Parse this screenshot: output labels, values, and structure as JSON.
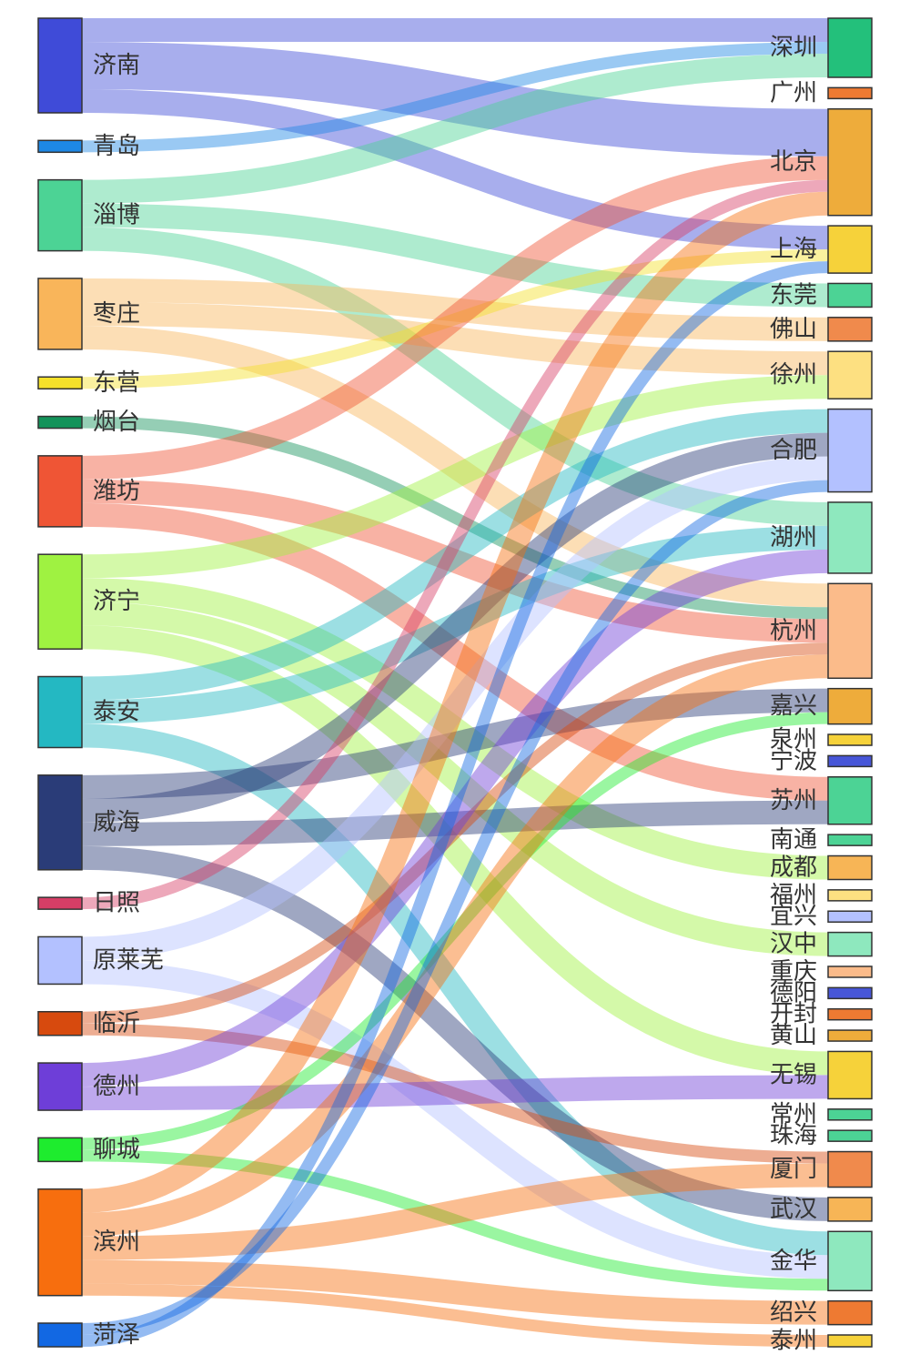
{
  "chart_data": {
    "type": "sankey",
    "sources": [
      {
        "name": "济南",
        "color": "#3f4bd8"
      },
      {
        "name": "青岛",
        "color": "#1e88e5"
      },
      {
        "name": "淄博",
        "color": "#4cd395"
      },
      {
        "name": "枣庄",
        "color": "#f9b55a"
      },
      {
        "name": "东营",
        "color": "#f5e12a"
      },
      {
        "name": "烟台",
        "color": "#13935a"
      },
      {
        "name": "潍坊",
        "color": "#ef5535"
      },
      {
        "name": "济宁",
        "color": "#9ff241"
      },
      {
        "name": "泰安",
        "color": "#24b8c2"
      },
      {
        "name": "威海",
        "color": "#2a3c78"
      },
      {
        "name": "日照",
        "color": "#d63e66"
      },
      {
        "name": "原莱芜",
        "color": "#b3c1ff"
      },
      {
        "name": "临沂",
        "color": "#d74a0e"
      },
      {
        "name": "德州",
        "color": "#6e3ed8"
      },
      {
        "name": "聊城",
        "color": "#1eec2e"
      },
      {
        "name": "滨州",
        "color": "#f76e0e"
      },
      {
        "name": "菏泽",
        "color": "#1268e3"
      }
    ],
    "targets": [
      {
        "name": "深圳",
        "color": "#23c07b"
      },
      {
        "name": "广州",
        "color": "#ee7a32"
      },
      {
        "name": "北京",
        "color": "#eeac3b"
      },
      {
        "name": "上海",
        "color": "#f6d23a"
      },
      {
        "name": "东莞",
        "color": "#4cd395"
      },
      {
        "name": "佛山",
        "color": "#f08a4c"
      },
      {
        "name": "徐州",
        "color": "#fde081"
      },
      {
        "name": "合肥",
        "color": "#b3c1ff"
      },
      {
        "name": "湖州",
        "color": "#8ee8be"
      },
      {
        "name": "杭州",
        "color": "#fbbb8a"
      },
      {
        "name": "嘉兴",
        "color": "#eeac3b"
      },
      {
        "name": "泉州",
        "color": "#f6d23a"
      },
      {
        "name": "宁波",
        "color": "#4756d8"
      },
      {
        "name": "苏州",
        "color": "#4cd395"
      },
      {
        "name": "南通",
        "color": "#4cd395"
      },
      {
        "name": "成都",
        "color": "#f7b556"
      },
      {
        "name": "福州",
        "color": "#fde081"
      },
      {
        "name": "宜兴",
        "color": "#b3c1ff"
      },
      {
        "name": "汉中",
        "color": "#8ee8be"
      },
      {
        "name": "重庆",
        "color": "#fbbb8a"
      },
      {
        "name": "德阳",
        "color": "#4756d8"
      },
      {
        "name": "开封",
        "color": "#ee7a32"
      },
      {
        "name": "黄山",
        "color": "#eeac3b"
      },
      {
        "name": "无锡",
        "color": "#f6d23a"
      },
      {
        "name": "常州",
        "color": "#4cd395"
      },
      {
        "name": "珠海",
        "color": "#4cd395"
      },
      {
        "name": "厦门",
        "color": "#f08a4c"
      },
      {
        "name": "武汉",
        "color": "#f7b556"
      },
      {
        "name": "金华",
        "color": "#8ee8be"
      },
      {
        "name": "绍兴",
        "color": "#ee7a32"
      },
      {
        "name": "泰州",
        "color": "#f6d23a"
      }
    ],
    "links": [
      {
        "source": "济南",
        "target": "深圳",
        "value": 1
      },
      {
        "source": "济南",
        "target": "北京",
        "value": 2
      },
      {
        "source": "济南",
        "target": "上海",
        "value": 1
      },
      {
        "source": "青岛",
        "target": "深圳",
        "value": 0.5
      },
      {
        "source": "淄博",
        "target": "深圳",
        "value": 1
      },
      {
        "source": "淄博",
        "target": "东莞",
        "value": 1
      },
      {
        "source": "淄博",
        "target": "湖州",
        "value": 1
      },
      {
        "source": "枣庄",
        "target": "佛山",
        "value": 1
      },
      {
        "source": "枣庄",
        "target": "徐州",
        "value": 1
      },
      {
        "source": "枣庄",
        "target": "杭州",
        "value": 1
      },
      {
        "source": "东营",
        "target": "上海",
        "value": 0.5
      },
      {
        "source": "烟台",
        "target": "杭州",
        "value": 0.5
      },
      {
        "source": "潍坊",
        "target": "北京",
        "value": 1
      },
      {
        "source": "潍坊",
        "target": "杭州",
        "value": 1
      },
      {
        "source": "潍坊",
        "target": "苏州",
        "value": 1
      },
      {
        "source": "济宁",
        "target": "徐州",
        "value": 1
      },
      {
        "source": "济宁",
        "target": "成都",
        "value": 1
      },
      {
        "source": "济宁",
        "target": "汉中",
        "value": 1
      },
      {
        "source": "济宁",
        "target": "无锡",
        "value": 1
      },
      {
        "source": "泰安",
        "target": "合肥",
        "value": 1
      },
      {
        "source": "泰安",
        "target": "湖州",
        "value": 1
      },
      {
        "source": "泰安",
        "target": "金华",
        "value": 1
      },
      {
        "source": "威海",
        "target": "嘉兴",
        "value": 1
      },
      {
        "source": "威海",
        "target": "合肥",
        "value": 1
      },
      {
        "source": "威海",
        "target": "苏州",
        "value": 1
      },
      {
        "source": "威海",
        "target": "武汉",
        "value": 1
      },
      {
        "source": "日照",
        "target": "北京",
        "value": 0.5
      },
      {
        "source": "原莱芜",
        "target": "合肥",
        "value": 1
      },
      {
        "source": "原莱芜",
        "target": "金华",
        "value": 1
      },
      {
        "source": "临沂",
        "target": "杭州",
        "value": 0.5
      },
      {
        "source": "临沂",
        "target": "厦门",
        "value": 0.5
      },
      {
        "source": "德州",
        "target": "湖州",
        "value": 1
      },
      {
        "source": "德州",
        "target": "无锡",
        "value": 1
      },
      {
        "source": "聊城",
        "target": "嘉兴",
        "value": 0.5
      },
      {
        "source": "聊城",
        "target": "金华",
        "value": 0.5
      },
      {
        "source": "滨州",
        "target": "北京",
        "value": 1
      },
      {
        "source": "滨州",
        "target": "杭州",
        "value": 1
      },
      {
        "source": "滨州",
        "target": "厦门",
        "value": 1
      },
      {
        "source": "滨州",
        "target": "绍兴",
        "value": 1
      },
      {
        "source": "滨州",
        "target": "泰州",
        "value": 0.5
      },
      {
        "source": "菏泽",
        "target": "合肥",
        "value": 0.5
      },
      {
        "source": "菏泽",
        "target": "上海",
        "value": 0.5
      }
    ]
  }
}
